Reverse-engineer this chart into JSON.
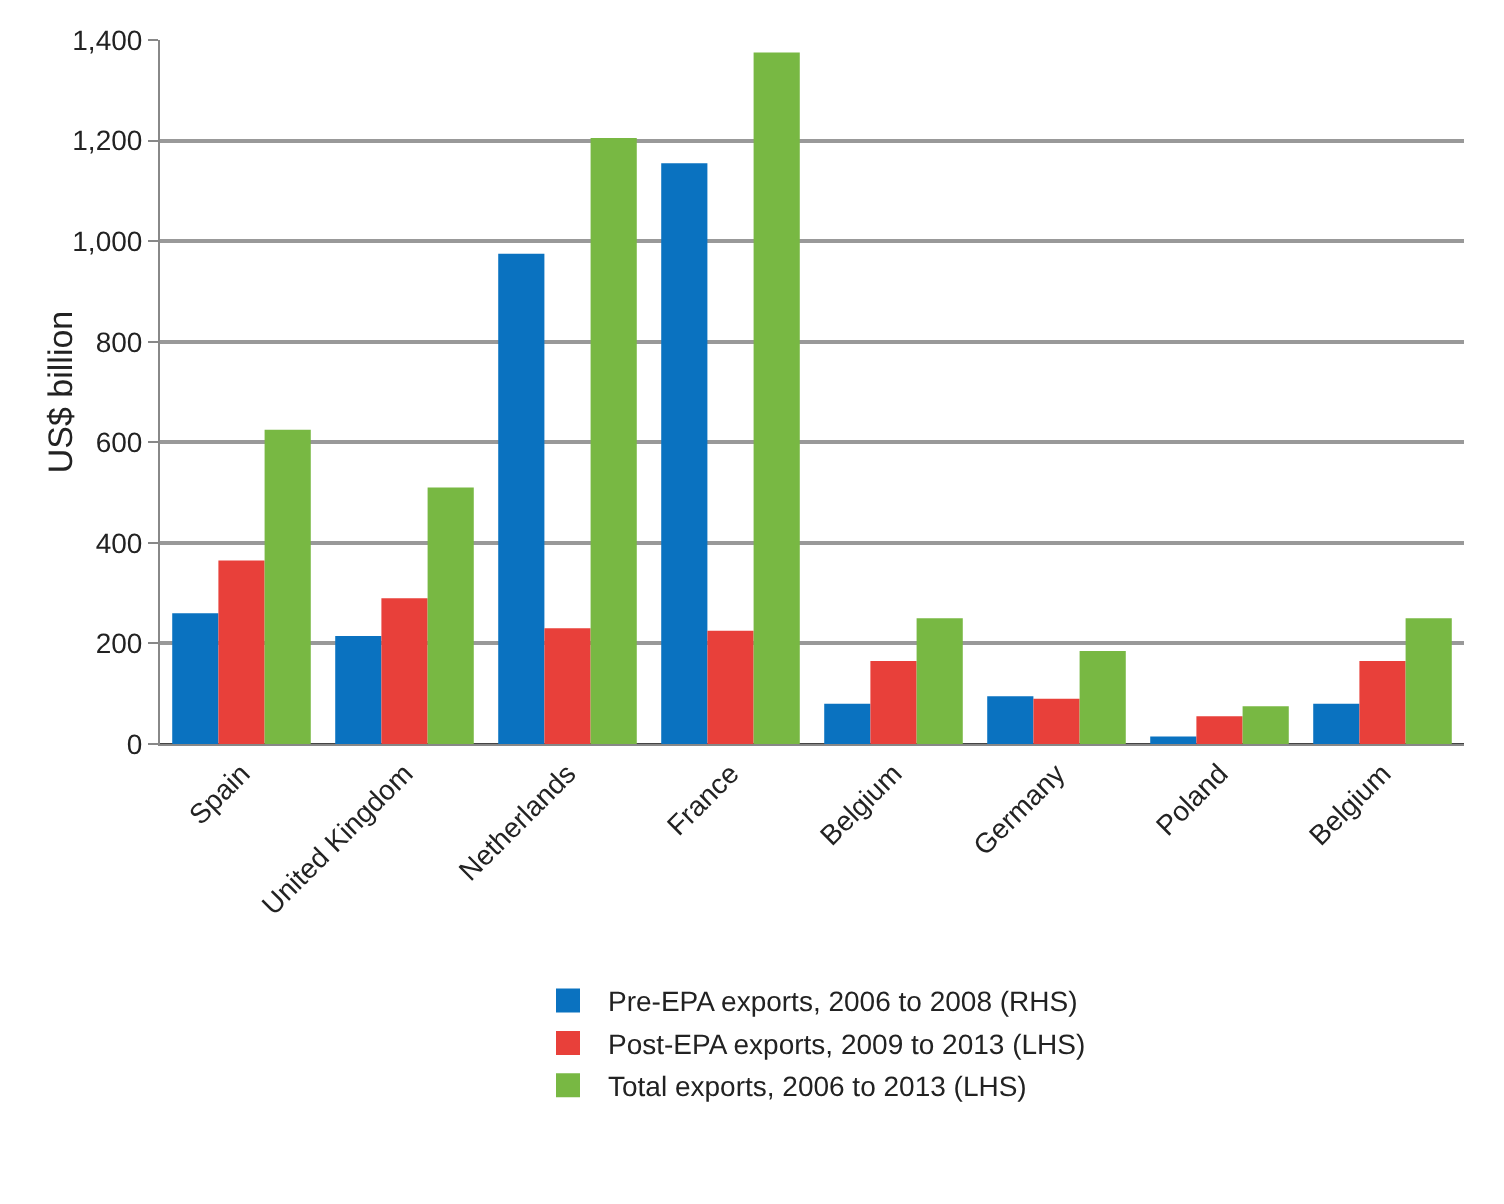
{
  "chart_data": {
    "type": "bar",
    "ylabel": "US$ billion",
    "categories": [
      "Spain",
      "United Kingdom",
      "Netherlands",
      "France",
      "Belgium",
      "Germany",
      "Poland",
      "Belgium"
    ],
    "series": [
      {
        "name": "Pre-EPA exports, 2006 to 2008 (RHS)",
        "color": "#0a72c0",
        "values": [
          260,
          215,
          975,
          1155,
          80,
          95,
          15,
          80
        ]
      },
      {
        "name": "Post-EPA exports, 2009 to 2013 (LHS)",
        "color": "#e8403a",
        "values": [
          365,
          290,
          230,
          225,
          165,
          90,
          55,
          165
        ]
      },
      {
        "name": "Total exports, 2006 to 2013 (LHS)",
        "color": "#78b843",
        "values": [
          625,
          510,
          1205,
          1375,
          250,
          185,
          75,
          250
        ]
      }
    ],
    "ylim": [
      0,
      1400
    ],
    "yticks": [
      {
        "value": 0,
        "label": "0"
      },
      {
        "value": 200,
        "label": "200"
      },
      {
        "value": 400,
        "label": "400"
      },
      {
        "value": 600,
        "label": "600"
      },
      {
        "value": 800,
        "label": "800"
      },
      {
        "value": 1000,
        "label": "1,000"
      },
      {
        "value": 1200,
        "label": "1,200"
      },
      {
        "value": 1400,
        "label": "1,400"
      }
    ],
    "grid": "y",
    "legend": "bottom"
  }
}
